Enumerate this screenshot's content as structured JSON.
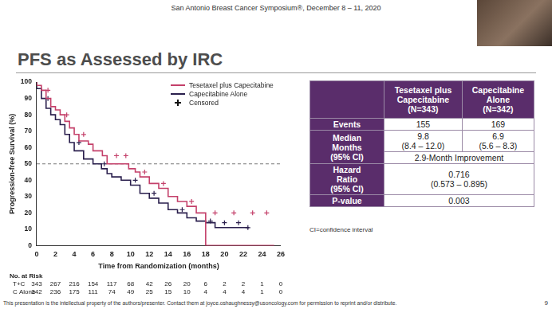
{
  "slide": {
    "header": "San Antonio Breast Cancer Symposium®, December 8 – 11, 2020",
    "title": "PFS as Assessed by IRC",
    "footer": "This presentation is the intellectual property of the authors/presenter. Contact them at joyce.oshaughnessy@usoncology.com for permission to reprint and/or distribute.",
    "page": 9
  },
  "chart_data": {
    "type": "line",
    "x_label": "Time from Randomization (months)",
    "y_label": "Progression-free Survival (%)",
    "xlim": [
      0,
      26
    ],
    "xticks": [
      0,
      2,
      4,
      6,
      8,
      10,
      12,
      14,
      16,
      18,
      20,
      22,
      24,
      26
    ],
    "ylim": [
      0,
      100
    ],
    "yticks": [
      0,
      10,
      20,
      30,
      40,
      50,
      60,
      70,
      80,
      90,
      100
    ],
    "grid": false,
    "legend": "upper right",
    "reference_line": 50,
    "censored_label": "Censored",
    "series": [
      {
        "name": "Tesetaxel plus Capecitabine",
        "color": "#c4406a",
        "line_style": "step",
        "marker": "cross",
        "x": [
          0,
          0.5,
          1,
          1.5,
          2,
          2.5,
          3,
          3.5,
          4,
          4.5,
          5.5,
          6,
          7,
          7.5,
          9.8,
          10.5,
          11,
          12,
          13,
          14,
          15,
          16,
          17,
          18,
          25.3
        ],
        "values": [
          100,
          98,
          95,
          90,
          85,
          83,
          80,
          76,
          72,
          68,
          64,
          62,
          58,
          55,
          50,
          47,
          45,
          42,
          38,
          35,
          30,
          27,
          24,
          20,
          0
        ],
        "censored_x": [
          1.2,
          3.2,
          5,
          8.5,
          9.5,
          11.5,
          13.5,
          16.5,
          19,
          21,
          23,
          24.5
        ],
        "censored_values": [
          95,
          80,
          68,
          55,
          55,
          45,
          38,
          27,
          20,
          20,
          20,
          20
        ]
      },
      {
        "name": "Capecitabine Alone",
        "color": "#2a1f4d",
        "line_style": "step",
        "marker": "cross",
        "x": [
          0,
          0.5,
          1,
          1.5,
          2,
          2.5,
          3,
          3.5,
          4,
          5,
          6,
          6.9,
          7.5,
          8,
          9,
          10,
          11,
          12,
          13,
          14,
          15,
          16,
          17,
          18,
          19,
          22.3,
          22.6
        ],
        "values": [
          100,
          96,
          90,
          84,
          80,
          77,
          74,
          68,
          63,
          58,
          53,
          50,
          47,
          44,
          42,
          40,
          37,
          32,
          29,
          26,
          22,
          20,
          17,
          15,
          14,
          11,
          11
        ],
        "censored_x": [
          1.2,
          4.5,
          7.2,
          10.5,
          12.5,
          15.5,
          18.5,
          20,
          21.5,
          22.5
        ],
        "censored_values": [
          90,
          63,
          50,
          40,
          32,
          22,
          15,
          14,
          14,
          11
        ]
      }
    ],
    "at_risk": {
      "title": "No. at Risk",
      "rows": [
        {
          "name": "T+C",
          "values": [
            343,
            267,
            216,
            154,
            117,
            68,
            42,
            26,
            20,
            6,
            2,
            2,
            1,
            0
          ]
        },
        {
          "name": "C Alone",
          "values": [
            342,
            236,
            175,
            111,
            74,
            49,
            25,
            15,
            10,
            4,
            4,
            4,
            1,
            0
          ]
        }
      ]
    }
  },
  "table": {
    "columns": [
      [
        "Tesetaxel plus",
        "Capecitabine",
        "(N=343)"
      ],
      [
        "Capecitabine",
        "Alone",
        "(N=342)"
      ]
    ],
    "rows": [
      {
        "label": [
          "Events"
        ],
        "cells": [
          [
            "155"
          ],
          [
            "169"
          ]
        ]
      },
      {
        "label": [
          "Median",
          "Months",
          "(95% CI)"
        ],
        "cells": [
          [
            "9.8",
            "(8.4 – 12.0)"
          ],
          [
            "6.9",
            "(5.6 – 8.3)"
          ]
        ],
        "note": [
          "2.9-Month Improvement"
        ]
      },
      {
        "label": [
          "Hazard",
          "Ratio",
          "(95% CI)"
        ],
        "cells": [
          [
            "0.716",
            "(0.573 – 0.895)"
          ]
        ]
      },
      {
        "label": [
          "P-value"
        ],
        "cells": [
          [
            "0.003"
          ]
        ]
      }
    ]
  },
  "table_note": "CI=confidence interval"
}
